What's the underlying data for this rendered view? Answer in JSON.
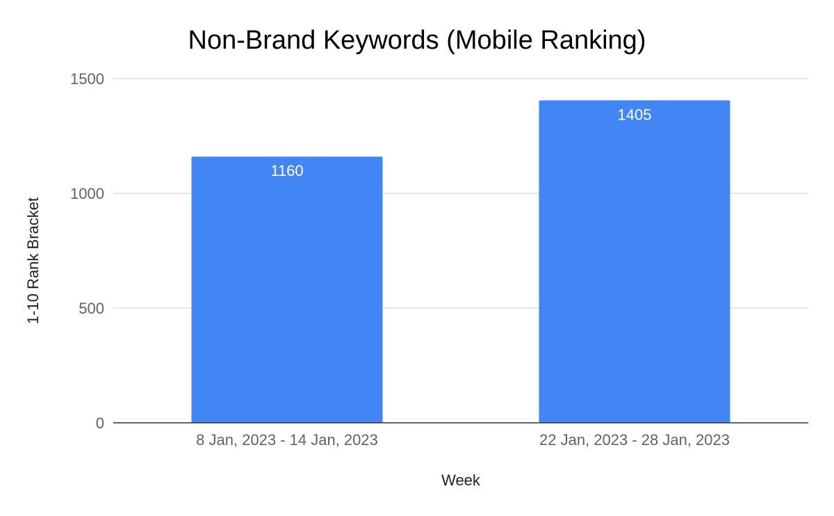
{
  "chart_data": {
    "type": "bar",
    "title": "Non-Brand Keywords (Mobile Ranking)",
    "xlabel": "Week",
    "ylabel": "1-10 Rank Bracket",
    "categories": [
      "8 Jan, 2023 - 14 Jan, 2023",
      "22 Jan, 2023 - 28 Jan, 2023"
    ],
    "values": [
      1160,
      1405
    ],
    "data_labels": [
      "1160",
      "1405"
    ],
    "ylim": [
      0,
      1500
    ],
    "yticks": [
      0,
      500,
      1000,
      1500
    ],
    "ytick_labels": [
      "0",
      "500",
      "1000",
      "1500"
    ],
    "grid": true,
    "legend": "none",
    "colors": {
      "bar": "#4285f4",
      "grid": "#cccccc",
      "baseline": "#333333"
    }
  }
}
